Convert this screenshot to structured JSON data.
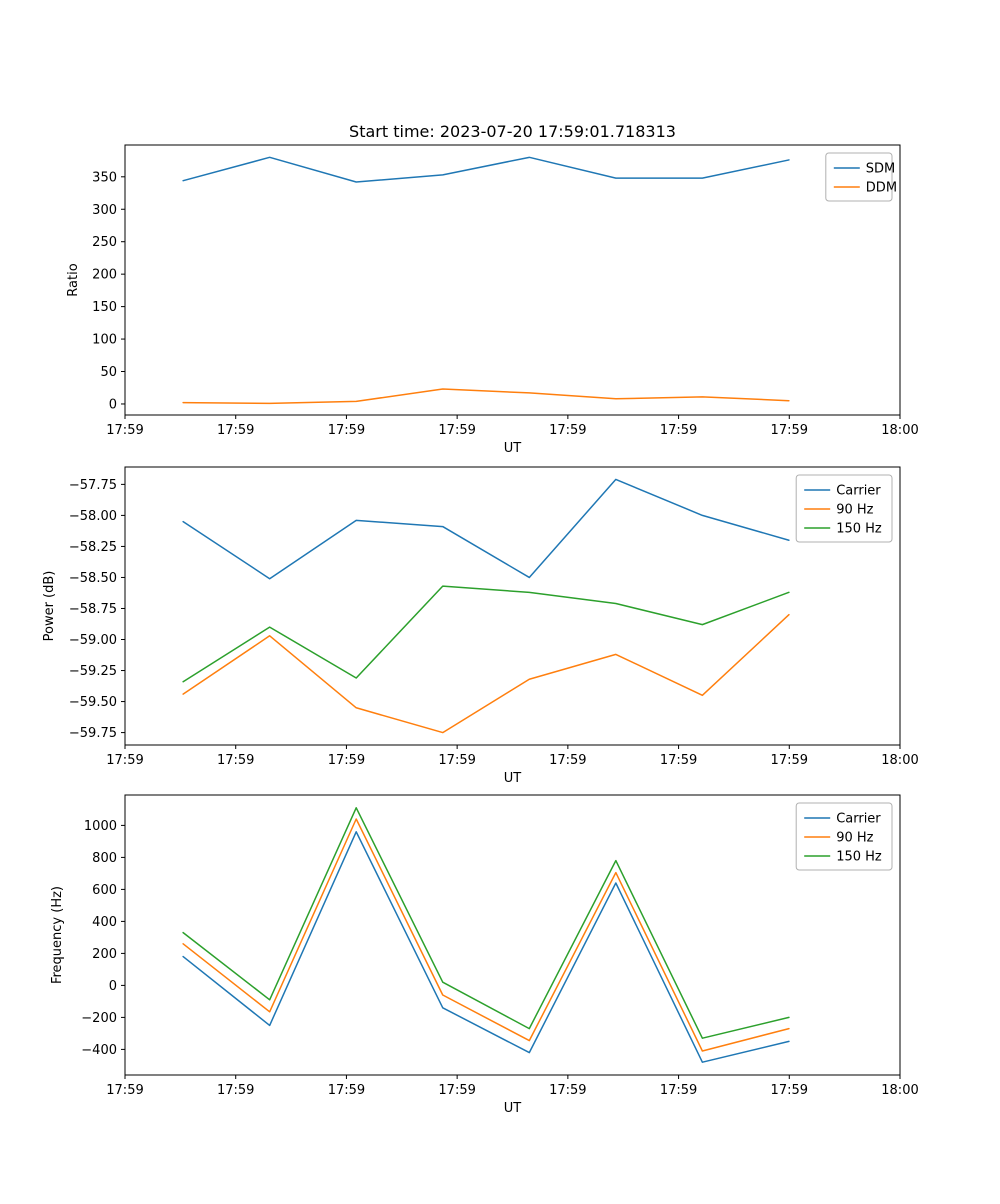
{
  "figure": {
    "title": "Start time: 2023-07-20 17:59:01.718313"
  },
  "colors": {
    "blue": "#1f77b4",
    "orange": "#ff7f0e",
    "green": "#2ca02c"
  },
  "chart_data": [
    {
      "type": "line",
      "title": "Start time: 2023-07-20 17:59:01.718313",
      "xlabel": "UT",
      "ylabel": "Ratio",
      "xlim": [
        0,
        60
      ],
      "ylim": [
        -17,
        399
      ],
      "x": [
        4.5,
        11.2,
        17.9,
        24.6,
        31.3,
        38.0,
        44.7,
        51.4
      ],
      "xticklabels": [
        "17:59",
        "17:59",
        "17:59",
        "17:59",
        "17:59",
        "17:59",
        "17:59",
        "18:00"
      ],
      "yticks": {
        "values": [
          0,
          50,
          100,
          150,
          200,
          250,
          300,
          350
        ],
        "labels": [
          "0",
          "50",
          "100",
          "150",
          "200",
          "250",
          "300",
          "350"
        ]
      },
      "grid": false,
      "legend_position": "upper right",
      "series": [
        {
          "name": "SDM",
          "color": "#1f77b4",
          "values": [
            344,
            380,
            342,
            353,
            380,
            348,
            348,
            376
          ]
        },
        {
          "name": "DDM",
          "color": "#ff7f0e",
          "values": [
            2,
            1,
            4,
            23,
            17,
            8,
            11,
            5
          ]
        }
      ]
    },
    {
      "type": "line",
      "title": "",
      "xlabel": "UT",
      "ylabel": "Power (dB)",
      "xlim": [
        0,
        60
      ],
      "ylim": [
        -59.85,
        -57.61
      ],
      "x": [
        4.5,
        11.2,
        17.9,
        24.6,
        31.3,
        38.0,
        44.7,
        51.4
      ],
      "xticklabels": [
        "17:59",
        "17:59",
        "17:59",
        "17:59",
        "17:59",
        "17:59",
        "17:59",
        "18:00"
      ],
      "yticks": {
        "values": [
          -57.75,
          -58.0,
          -58.25,
          -58.5,
          -58.75,
          -59.0,
          -59.25,
          -59.5,
          -59.75
        ],
        "labels": [
          "−57.75",
          "−58.00",
          "−58.25",
          "−58.50",
          "−58.75",
          "−59.00",
          "−59.25",
          "−59.50",
          "−59.75"
        ]
      },
      "grid": false,
      "legend_position": "upper right",
      "series": [
        {
          "name": "Carrier",
          "color": "#1f77b4",
          "values": [
            -58.05,
            -58.51,
            -58.04,
            -58.09,
            -58.5,
            -57.71,
            -58.0,
            -58.2
          ]
        },
        {
          "name": "90 Hz",
          "color": "#ff7f0e",
          "values": [
            -59.44,
            -58.97,
            -59.55,
            -59.75,
            -59.32,
            -59.12,
            -59.45,
            -58.8
          ]
        },
        {
          "name": "150 Hz",
          "color": "#2ca02c",
          "values": [
            -59.34,
            -58.9,
            -59.31,
            -58.57,
            -58.62,
            -58.71,
            -58.88,
            -58.62
          ]
        }
      ]
    },
    {
      "type": "line",
      "title": "",
      "xlabel": "UT",
      "ylabel": "Frequency (Hz)",
      "xlim": [
        0,
        60
      ],
      "ylim": [
        -560,
        1190
      ],
      "x": [
        4.5,
        11.2,
        17.9,
        24.6,
        31.3,
        38.0,
        44.7,
        51.4
      ],
      "xticklabels": [
        "17:59",
        "17:59",
        "17:59",
        "17:59",
        "17:59",
        "17:59",
        "17:59",
        "18:00"
      ],
      "yticks": {
        "values": [
          -400,
          -200,
          0,
          200,
          400,
          600,
          800,
          1000
        ],
        "labels": [
          "−400",
          "−200",
          "0",
          "200",
          "400",
          "600",
          "800",
          "1000"
        ]
      },
      "grid": false,
      "legend_position": "upper right",
      "series": [
        {
          "name": "Carrier",
          "color": "#1f77b4",
          "values": [
            180,
            -250,
            960,
            -140,
            -420,
            640,
            -480,
            -350
          ]
        },
        {
          "name": "90 Hz",
          "color": "#ff7f0e",
          "values": [
            260,
            -165,
            1040,
            -60,
            -345,
            705,
            -410,
            -270
          ]
        },
        {
          "name": "150 Hz",
          "color": "#2ca02c",
          "values": [
            330,
            -90,
            1110,
            20,
            -270,
            780,
            -330,
            -200
          ]
        }
      ]
    }
  ]
}
